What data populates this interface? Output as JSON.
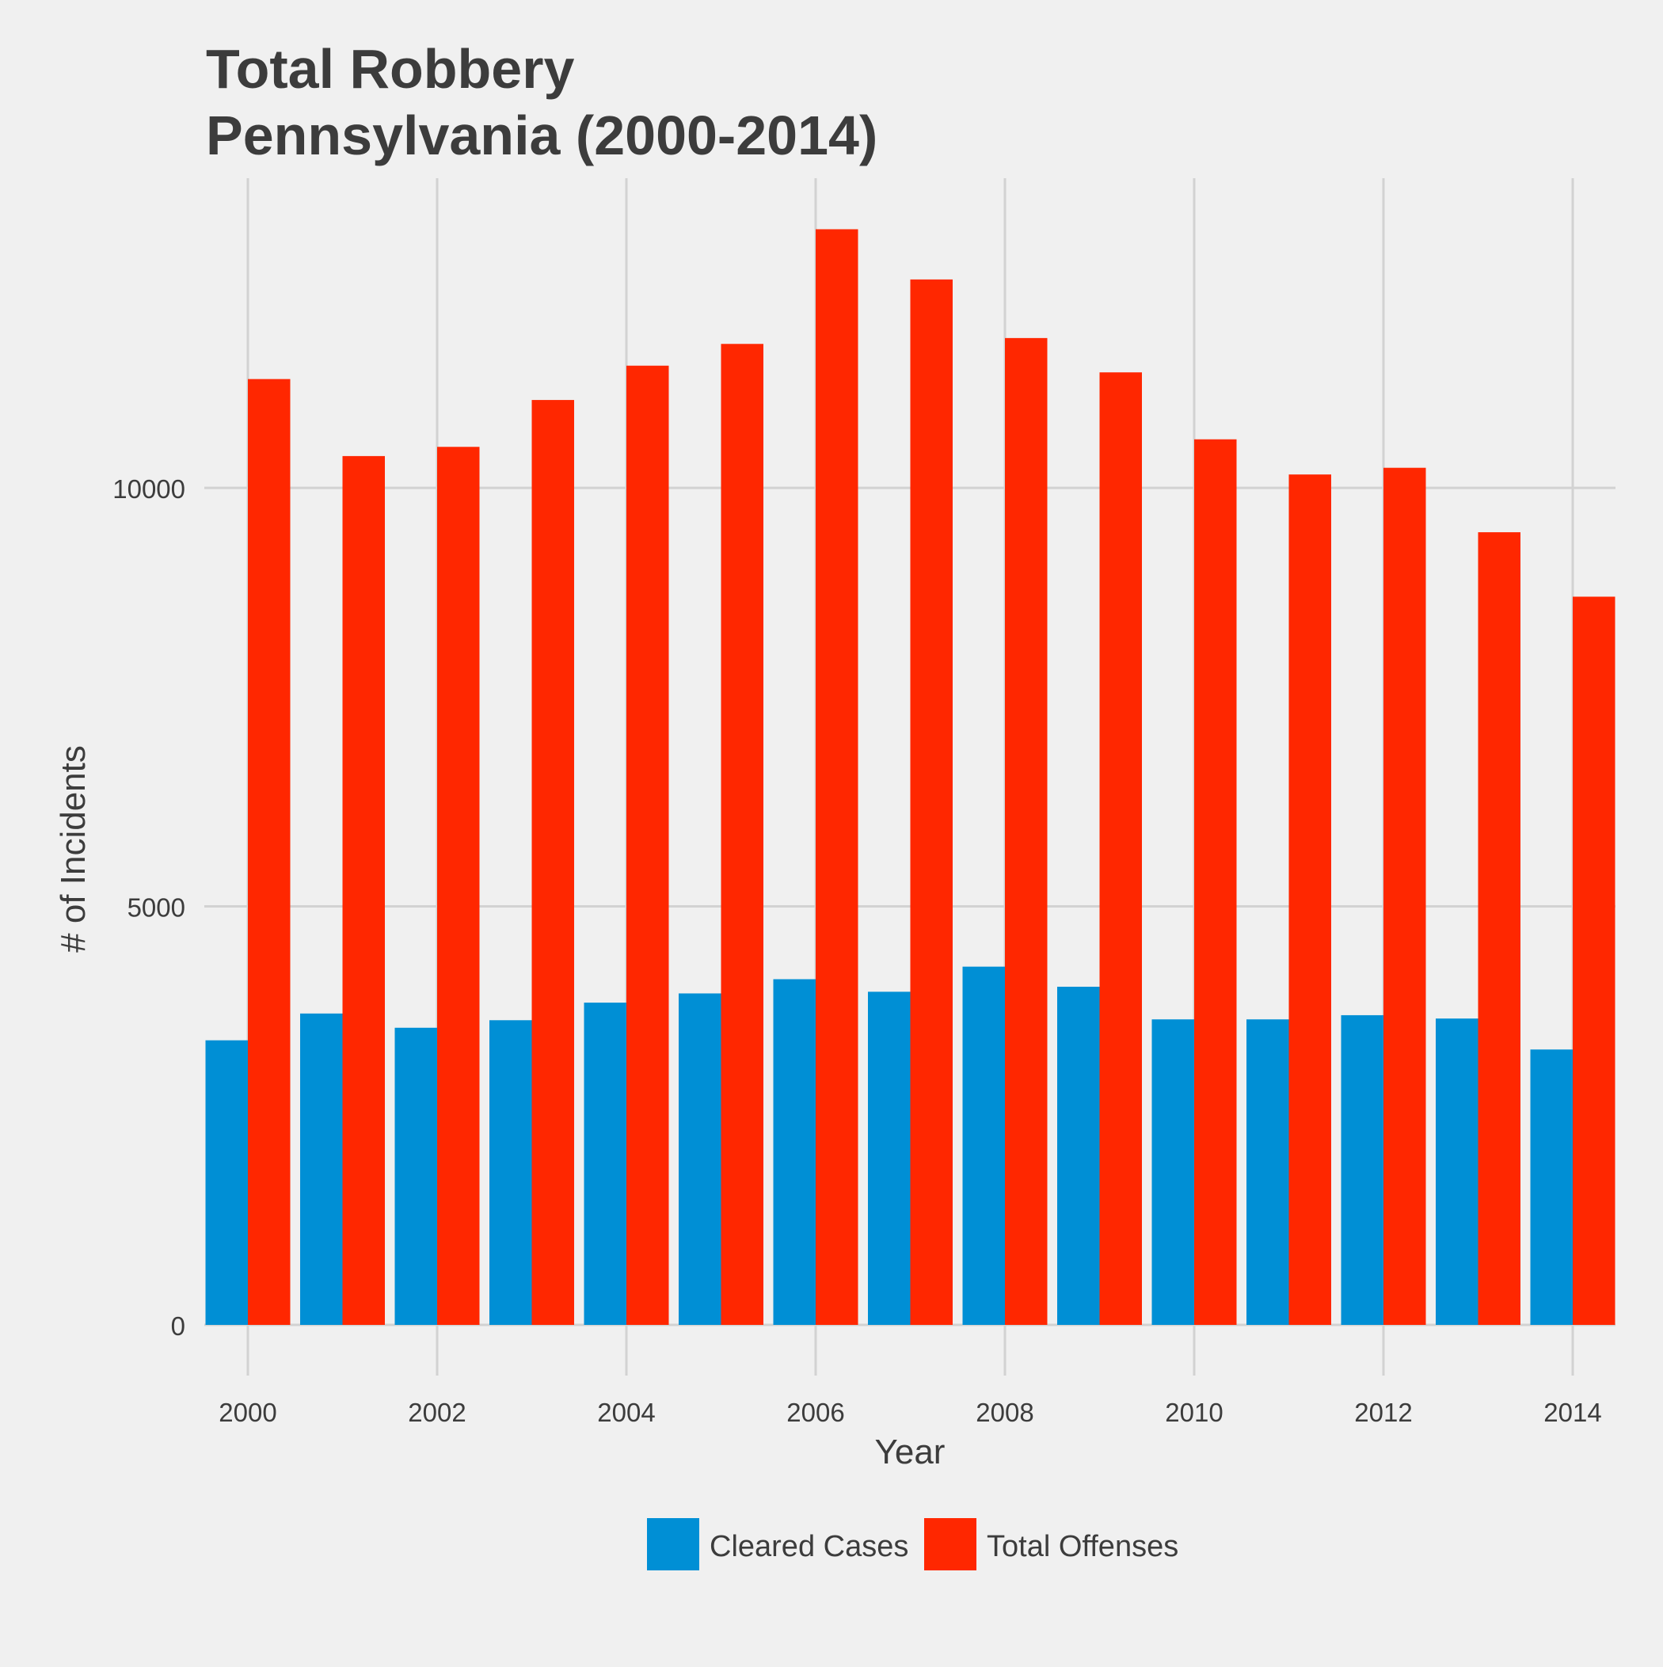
{
  "chart_data": {
    "type": "bar",
    "title": "Total Robbery",
    "subtitle": "Pennsylvania (2000-2014)",
    "xlabel": "Year",
    "ylabel": "# of Incidents",
    "categories": [
      2000,
      2001,
      2002,
      2003,
      2004,
      2005,
      2006,
      2007,
      2008,
      2009,
      2010,
      2011,
      2012,
      2013,
      2014
    ],
    "x_ticks": [
      "2000",
      "2002",
      "2004",
      "2006",
      "2008",
      "2010",
      "2012",
      "2014"
    ],
    "y_ticks": [
      "0",
      "5000",
      "10000"
    ],
    "ylim": [
      0,
      13700
    ],
    "grid": true,
    "legend_position": "bottom",
    "series": [
      {
        "name": "Cleared Cases",
        "color": "#008fd5",
        "values": [
          3400,
          3720,
          3550,
          3640,
          3850,
          3960,
          4130,
          3980,
          4280,
          4040,
          3650,
          3650,
          3700,
          3660,
          3290
        ]
      },
      {
        "name": "Total Offenses",
        "color": "#ff2700",
        "values": [
          11300,
          10380,
          10490,
          11050,
          11460,
          11720,
          13090,
          12490,
          11790,
          11380,
          10580,
          10160,
          10240,
          9470,
          8700
        ]
      }
    ]
  }
}
